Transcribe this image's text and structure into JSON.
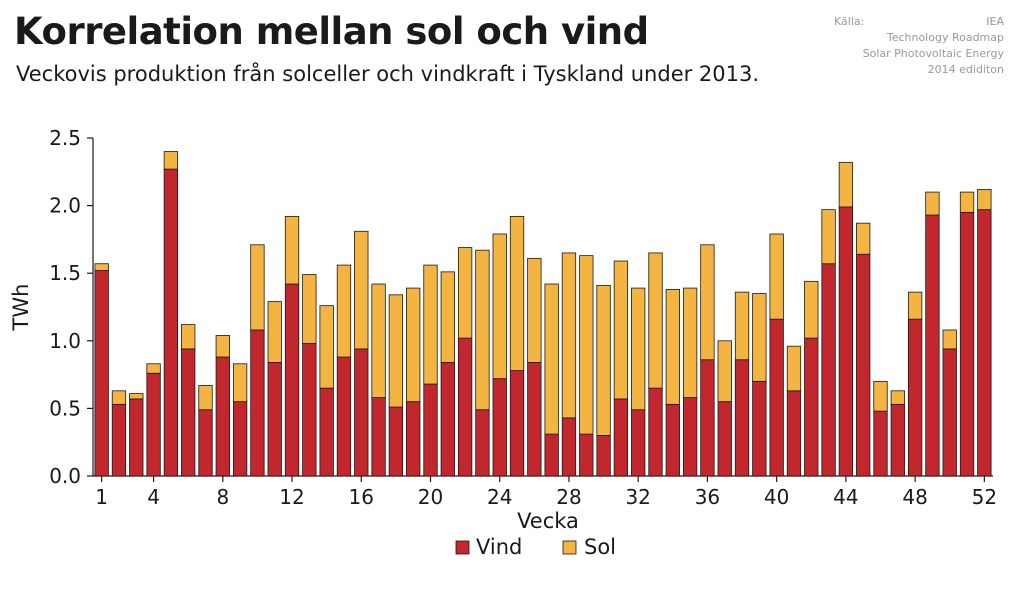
{
  "header": {
    "title": "Korrelation mellan sol och vind",
    "subtitle": "Veckovis produktion från solceller och vindkraft i Tyskland under 2013."
  },
  "source": {
    "label": "Källa:",
    "org": "IEA",
    "lines": [
      "Technology Roadmap",
      "Solar Photovoltaic Energy",
      "2014 ediditon"
    ]
  },
  "chart_data": {
    "type": "bar",
    "stacked": true,
    "xlabel": "Vecka",
    "ylabel": "TWh",
    "ylim": [
      0,
      2.5
    ],
    "yticks": [
      "0.0",
      "0.5",
      "1.0",
      "1.5",
      "2.0",
      "2.5"
    ],
    "xticks": [
      1,
      4,
      8,
      12,
      16,
      20,
      24,
      28,
      32,
      36,
      40,
      44,
      48,
      52
    ],
    "categories": [
      1,
      2,
      3,
      4,
      5,
      6,
      7,
      8,
      9,
      10,
      11,
      12,
      13,
      14,
      15,
      16,
      17,
      18,
      19,
      20,
      21,
      22,
      23,
      24,
      25,
      26,
      27,
      28,
      29,
      30,
      31,
      32,
      33,
      34,
      35,
      36,
      37,
      38,
      39,
      40,
      41,
      42,
      43,
      44,
      45,
      46,
      47,
      48,
      49,
      50,
      51,
      52
    ],
    "legend_position": "bottom",
    "series": [
      {
        "name": "Vind",
        "color": "#c1272d",
        "values": [
          1.52,
          0.53,
          0.57,
          0.76,
          2.27,
          0.94,
          0.49,
          0.88,
          0.55,
          1.08,
          0.84,
          1.42,
          0.98,
          0.65,
          0.88,
          0.94,
          0.58,
          0.51,
          0.55,
          0.68,
          0.84,
          1.02,
          0.49,
          0.72,
          0.78,
          0.84,
          0.31,
          0.43,
          0.31,
          0.3,
          0.57,
          0.49,
          0.65,
          0.53,
          0.58,
          0.86,
          0.55,
          0.86,
          0.7,
          1.16,
          0.63,
          1.02,
          1.57,
          1.99,
          1.64,
          0.48,
          0.53,
          1.16,
          1.93,
          0.94,
          1.95,
          1.97
        ]
      },
      {
        "name": "Sol",
        "color": "#f4b441",
        "values": [
          0.05,
          0.1,
          0.04,
          0.07,
          0.13,
          0.18,
          0.18,
          0.16,
          0.28,
          0.63,
          0.45,
          0.5,
          0.51,
          0.61,
          0.68,
          0.87,
          0.84,
          0.83,
          0.84,
          0.88,
          0.67,
          0.67,
          1.18,
          1.07,
          1.14,
          0.77,
          1.11,
          1.22,
          1.32,
          1.11,
          1.02,
          0.9,
          1.0,
          0.85,
          0.81,
          0.85,
          0.45,
          0.5,
          0.65,
          0.63,
          0.33,
          0.42,
          0.4,
          0.33,
          0.23,
          0.22,
          0.1,
          0.2,
          0.17,
          0.14,
          0.15,
          0.15
        ]
      }
    ]
  }
}
